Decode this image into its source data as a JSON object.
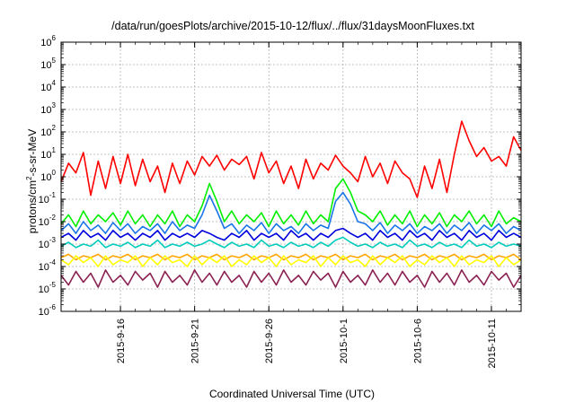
{
  "chart_data": {
    "type": "line",
    "title": "/data/run/goesPlots/archive/2015-10-12/flux/../flux/31daysMoonFluxes.txt",
    "xlabel": "Coordinated Universal Time (UTC)",
    "ylabel": {
      "pre": "protons/cm",
      "sup": "2",
      "post": "-s-sr-MeV"
    },
    "yscale": "log",
    "ylim": [
      1e-06,
      1000000.0
    ],
    "xlim": [
      12.0,
      43.0
    ],
    "x_unit": "days since 2015-09-01 (axis shown as dates)",
    "grid": true,
    "y_ticks": [
      {
        "value": 1e-06,
        "base": "10",
        "exp": "-6"
      },
      {
        "value": 1e-05,
        "base": "10",
        "exp": "-5"
      },
      {
        "value": 0.0001,
        "base": "10",
        "exp": "-4"
      },
      {
        "value": 0.001,
        "base": "10",
        "exp": "-3"
      },
      {
        "value": 0.01,
        "base": "10",
        "exp": "-2"
      },
      {
        "value": 0.1,
        "base": "10",
        "exp": "-1"
      },
      {
        "value": 1,
        "base": "10",
        "exp": "0"
      },
      {
        "value": 10.0,
        "base": "10",
        "exp": "1"
      },
      {
        "value": 100.0,
        "base": "10",
        "exp": "2"
      },
      {
        "value": 1000.0,
        "base": "10",
        "exp": "3"
      },
      {
        "value": 10000.0,
        "base": "10",
        "exp": "4"
      },
      {
        "value": 100000.0,
        "base": "10",
        "exp": "5"
      },
      {
        "value": 1000000.0,
        "base": "10",
        "exp": "6"
      }
    ],
    "x_ticks": [
      {
        "day": 16,
        "label": "2015-9-16"
      },
      {
        "day": 21,
        "label": "2015-9-21"
      },
      {
        "day": 26,
        "label": "2015-9-26"
      },
      {
        "day": 31,
        "label": "2015-10-1"
      },
      {
        "day": 36,
        "label": "2015-10-6"
      },
      {
        "day": 41,
        "label": "2015-10-11"
      }
    ],
    "series": [
      {
        "color": "#ff0000",
        "x": [
          12.0,
          12.5,
          13.0,
          13.5,
          14.0,
          14.5,
          15.0,
          15.5,
          16.0,
          16.5,
          17.0,
          17.5,
          18.0,
          18.5,
          19.0,
          19.5,
          20.0,
          20.5,
          21.0,
          21.5,
          22.0,
          22.5,
          23.0,
          23.5,
          24.0,
          24.5,
          25.0,
          25.5,
          26.0,
          26.5,
          27.0,
          27.5,
          28.0,
          28.5,
          29.0,
          29.5,
          30.0,
          30.5,
          31.0,
          31.5,
          32.0,
          32.5,
          33.0,
          33.5,
          34.0,
          34.5,
          35.0,
          35.5,
          36.0,
          36.5,
          37.0,
          37.5,
          38.0,
          38.5,
          39.0,
          39.5,
          40.0,
          40.5,
          41.0,
          41.5,
          42.0,
          42.5,
          43.0
        ],
        "y": [
          0.6,
          4.0,
          1.5,
          12.0,
          0.15,
          5.0,
          0.3,
          8.0,
          0.5,
          10.0,
          0.4,
          6.0,
          0.6,
          3.0,
          0.2,
          4.0,
          0.5,
          5.0,
          1.2,
          8.0,
          3.0,
          9.0,
          2.0,
          6.0,
          3.5,
          8.0,
          0.8,
          12.0,
          1.5,
          5.0,
          0.5,
          3.0,
          0.3,
          6.0,
          0.8,
          4.0,
          2.0,
          9.0,
          3.0,
          1.5,
          0.6,
          8.0,
          1.0,
          4.0,
          0.5,
          5.0,
          1.5,
          0.8,
          0.12,
          3.0,
          0.3,
          6.0,
          0.2,
          10.0,
          300.0,
          40.0,
          8.0,
          20.0,
          5.0,
          8.0,
          3.0,
          60.0,
          15.0
        ]
      },
      {
        "color": "#00ee00",
        "x": [
          12.0,
          12.5,
          13.0,
          13.5,
          14.0,
          14.5,
          15.0,
          15.5,
          16.0,
          16.5,
          17.0,
          17.5,
          18.0,
          18.5,
          19.0,
          19.5,
          20.0,
          20.5,
          21.0,
          21.5,
          22.0,
          22.5,
          23.0,
          23.5,
          24.0,
          24.5,
          25.0,
          25.5,
          26.0,
          26.5,
          27.0,
          27.5,
          28.0,
          28.5,
          29.0,
          29.5,
          30.0,
          30.5,
          31.0,
          31.5,
          32.0,
          32.5,
          33.0,
          33.5,
          34.0,
          34.5,
          35.0,
          35.5,
          36.0,
          36.5,
          37.0,
          37.5,
          38.0,
          38.5,
          39.0,
          39.5,
          40.0,
          40.5,
          41.0,
          41.5,
          42.0,
          42.5,
          43.0
        ],
        "y": [
          0.008,
          0.02,
          0.006,
          0.03,
          0.008,
          0.02,
          0.01,
          0.025,
          0.007,
          0.03,
          0.008,
          0.02,
          0.006,
          0.02,
          0.008,
          0.03,
          0.006,
          0.02,
          0.01,
          0.05,
          0.5,
          0.08,
          0.01,
          0.03,
          0.008,
          0.02,
          0.01,
          0.025,
          0.006,
          0.03,
          0.008,
          0.02,
          0.007,
          0.03,
          0.008,
          0.02,
          0.01,
          0.3,
          0.8,
          0.2,
          0.03,
          0.02,
          0.01,
          0.03,
          0.007,
          0.02,
          0.008,
          0.03,
          0.006,
          0.02,
          0.008,
          0.025,
          0.006,
          0.02,
          0.01,
          0.03,
          0.008,
          0.02,
          0.006,
          0.03,
          0.008,
          0.015,
          0.01
        ]
      },
      {
        "color": "#1874e8",
        "x": [
          12.0,
          12.5,
          13.0,
          13.5,
          14.0,
          14.5,
          15.0,
          15.5,
          16.0,
          16.5,
          17.0,
          17.5,
          18.0,
          18.5,
          19.0,
          19.5,
          20.0,
          20.5,
          21.0,
          21.5,
          22.0,
          22.5,
          23.0,
          23.5,
          24.0,
          24.5,
          25.0,
          25.5,
          26.0,
          26.5,
          27.0,
          27.5,
          28.0,
          28.5,
          29.0,
          29.5,
          30.0,
          30.5,
          31.0,
          31.5,
          32.0,
          32.5,
          33.0,
          33.5,
          34.0,
          34.5,
          35.0,
          35.5,
          36.0,
          36.5,
          37.0,
          37.5,
          38.0,
          38.5,
          39.0,
          39.5,
          40.0,
          40.5,
          41.0,
          41.5,
          42.0,
          42.5,
          43.0
        ],
        "y": [
          0.004,
          0.008,
          0.003,
          0.01,
          0.004,
          0.007,
          0.003,
          0.009,
          0.004,
          0.008,
          0.003,
          0.006,
          0.004,
          0.008,
          0.003,
          0.01,
          0.004,
          0.007,
          0.005,
          0.02,
          0.15,
          0.03,
          0.005,
          0.008,
          0.003,
          0.007,
          0.004,
          0.009,
          0.003,
          0.008,
          0.004,
          0.006,
          0.003,
          0.008,
          0.004,
          0.007,
          0.005,
          0.08,
          0.2,
          0.06,
          0.01,
          0.008,
          0.004,
          0.009,
          0.003,
          0.007,
          0.004,
          0.008,
          0.003,
          0.006,
          0.004,
          0.008,
          0.003,
          0.007,
          0.004,
          0.009,
          0.003,
          0.007,
          0.004,
          0.008,
          0.003,
          0.006,
          0.004
        ]
      },
      {
        "color": "#0000dd",
        "x": [
          12.0,
          12.5,
          13.0,
          13.5,
          14.0,
          14.5,
          15.0,
          15.5,
          16.0,
          16.5,
          17.0,
          17.5,
          18.0,
          18.5,
          19.0,
          19.5,
          20.0,
          20.5,
          21.0,
          21.5,
          22.0,
          22.5,
          23.0,
          23.5,
          24.0,
          24.5,
          25.0,
          25.5,
          26.0,
          26.5,
          27.0,
          27.5,
          28.0,
          28.5,
          29.0,
          29.5,
          30.0,
          30.5,
          31.0,
          31.5,
          32.0,
          32.5,
          33.0,
          33.5,
          34.0,
          34.5,
          35.0,
          35.5,
          36.0,
          36.5,
          37.0,
          37.5,
          38.0,
          38.5,
          39.0,
          39.5,
          40.0,
          40.5,
          41.0,
          41.5,
          42.0,
          42.5,
          43.0
        ],
        "y": [
          0.002,
          0.003,
          0.0015,
          0.004,
          0.002,
          0.003,
          0.0015,
          0.004,
          0.002,
          0.003,
          0.0015,
          0.003,
          0.002,
          0.004,
          0.0015,
          0.003,
          0.002,
          0.003,
          0.002,
          0.004,
          0.003,
          0.002,
          0.0015,
          0.003,
          0.002,
          0.004,
          0.0015,
          0.003,
          0.002,
          0.003,
          0.0015,
          0.004,
          0.002,
          0.003,
          0.0015,
          0.003,
          0.002,
          0.004,
          0.005,
          0.003,
          0.002,
          0.003,
          0.0015,
          0.004,
          0.002,
          0.003,
          0.0015,
          0.004,
          0.002,
          0.003,
          0.0015,
          0.004,
          0.002,
          0.003,
          0.0015,
          0.004,
          0.002,
          0.003,
          0.0015,
          0.004,
          0.002,
          0.003,
          0.002
        ]
      },
      {
        "color": "#00ccbb",
        "x": [
          12.0,
          12.5,
          13.0,
          13.5,
          14.0,
          14.5,
          15.0,
          15.5,
          16.0,
          16.5,
          17.0,
          17.5,
          18.0,
          18.5,
          19.0,
          19.5,
          20.0,
          20.5,
          21.0,
          21.5,
          22.0,
          22.5,
          23.0,
          23.5,
          24.0,
          24.5,
          25.0,
          25.5,
          26.0,
          26.5,
          27.0,
          27.5,
          28.0,
          28.5,
          29.0,
          29.5,
          30.0,
          30.5,
          31.0,
          31.5,
          32.0,
          32.5,
          33.0,
          33.5,
          34.0,
          34.5,
          35.0,
          35.5,
          36.0,
          36.5,
          37.0,
          37.5,
          38.0,
          38.5,
          39.0,
          39.5,
          40.0,
          40.5,
          41.0,
          41.5,
          42.0,
          42.5,
          43.0
        ],
        "y": [
          0.0008,
          0.0012,
          0.0007,
          0.001,
          0.0008,
          0.0015,
          0.0007,
          0.001,
          0.0008,
          0.0012,
          0.0007,
          0.001,
          0.0008,
          0.0015,
          0.0007,
          0.001,
          0.0008,
          0.0012,
          0.0008,
          0.001,
          0.0015,
          0.001,
          0.0007,
          0.0012,
          0.0008,
          0.001,
          0.0007,
          0.0015,
          0.0008,
          0.001,
          0.0007,
          0.0012,
          0.0008,
          0.001,
          0.0007,
          0.0012,
          0.0008,
          0.0015,
          0.002,
          0.0012,
          0.0008,
          0.001,
          0.0007,
          0.0012,
          0.0008,
          0.001,
          0.0007,
          0.0015,
          0.0008,
          0.001,
          0.0007,
          0.0012,
          0.0008,
          0.001,
          0.0007,
          0.0015,
          0.0008,
          0.001,
          0.0007,
          0.0012,
          0.0008,
          0.001,
          0.0008
        ]
      },
      {
        "color": "#ffa500",
        "x": [
          12.0,
          12.5,
          13.0,
          13.5,
          14.0,
          14.5,
          15.0,
          15.5,
          16.0,
          16.5,
          17.0,
          17.5,
          18.0,
          18.5,
          19.0,
          19.5,
          20.0,
          20.5,
          21.0,
          21.5,
          22.0,
          22.5,
          23.0,
          23.5,
          24.0,
          24.5,
          25.0,
          25.5,
          26.0,
          26.5,
          27.0,
          27.5,
          28.0,
          28.5,
          29.0,
          29.5,
          30.0,
          30.5,
          31.0,
          31.5,
          32.0,
          32.5,
          33.0,
          33.5,
          34.0,
          34.5,
          35.0,
          35.5,
          36.0,
          36.5,
          37.0,
          37.5,
          38.0,
          38.5,
          39.0,
          39.5,
          40.0,
          40.5,
          41.0,
          41.5,
          42.0,
          42.5,
          43.0
        ],
        "y": [
          0.00025,
          0.00035,
          0.0002,
          0.0003,
          0.00025,
          0.00035,
          0.0002,
          0.0003,
          0.00025,
          0.00035,
          0.0002,
          0.0003,
          0.00025,
          0.00035,
          0.0002,
          0.0003,
          0.00025,
          0.00035,
          0.0002,
          0.0003,
          0.00025,
          0.00035,
          0.0002,
          0.0003,
          0.00025,
          0.00035,
          0.0002,
          0.0003,
          0.00025,
          0.00035,
          0.0002,
          0.0003,
          0.00025,
          0.00035,
          0.0002,
          0.0003,
          0.00025,
          0.00035,
          0.0002,
          0.0003,
          0.00025,
          0.00035,
          0.0002,
          0.0003,
          0.00025,
          0.00035,
          0.0002,
          0.0003,
          0.00025,
          0.00035,
          0.0002,
          0.0003,
          0.00025,
          0.00035,
          0.0002,
          0.0003,
          0.00025,
          0.00035,
          0.0002,
          0.0003,
          0.00025,
          0.00035,
          0.0002
        ]
      },
      {
        "color": "#ffff00",
        "x": [
          12.0,
          12.5,
          13.0,
          13.5,
          14.0,
          14.5,
          15.0,
          15.5,
          16.0,
          16.5,
          17.0,
          17.5,
          18.0,
          18.5,
          19.0,
          19.5,
          20.0,
          20.5,
          21.0,
          21.5,
          22.0,
          22.5,
          23.0,
          23.5,
          24.0,
          24.5,
          25.0,
          25.5,
          26.0,
          26.5,
          27.0,
          27.5,
          28.0,
          28.5,
          29.0,
          29.5,
          30.0,
          30.5,
          31.0,
          31.5,
          32.0,
          32.5,
          33.0,
          33.5,
          34.0,
          34.5,
          35.0,
          35.5,
          36.0,
          36.5,
          37.0,
          37.5,
          38.0,
          38.5,
          39.0,
          39.5,
          40.0,
          40.5,
          41.0,
          41.5,
          42.0,
          42.5,
          43.0
        ],
        "y": [
          0.0002,
          0.00012,
          0.0003,
          0.00015,
          0.00025,
          0.0001,
          0.0003,
          0.00012,
          0.0002,
          0.00015,
          0.0003,
          0.0001,
          0.00025,
          0.00012,
          0.0003,
          0.00015,
          0.0002,
          0.0001,
          0.0003,
          0.00012,
          0.00025,
          0.00015,
          0.0003,
          0.0001,
          0.0002,
          0.00012,
          0.0003,
          0.00015,
          0.00025,
          0.0001,
          0.0003,
          0.00012,
          0.0002,
          0.00015,
          0.0003,
          0.0001,
          0.00025,
          0.00012,
          0.0003,
          0.00015,
          0.0002,
          0.0001,
          0.0003,
          0.00012,
          0.00025,
          0.00015,
          0.0003,
          0.0001,
          0.0002,
          0.00012,
          0.0003,
          0.00015,
          0.00025,
          0.0001,
          0.0003,
          0.00012,
          0.0002,
          0.00015,
          0.0003,
          0.0001,
          0.00025,
          0.00012,
          0.0002
        ]
      },
      {
        "color": "#8b2252",
        "x": [
          12.0,
          12.5,
          13.0,
          13.5,
          14.0,
          14.5,
          15.0,
          15.5,
          16.0,
          16.5,
          17.0,
          17.5,
          18.0,
          18.5,
          19.0,
          19.5,
          20.0,
          20.5,
          21.0,
          21.5,
          22.0,
          22.5,
          23.0,
          23.5,
          24.0,
          24.5,
          25.0,
          25.5,
          26.0,
          26.5,
          27.0,
          27.5,
          28.0,
          28.5,
          29.0,
          29.5,
          30.0,
          30.5,
          31.0,
          31.5,
          32.0,
          32.5,
          33.0,
          33.5,
          34.0,
          34.5,
          35.0,
          35.5,
          36.0,
          36.5,
          37.0,
          37.5,
          38.0,
          38.5,
          39.0,
          39.5,
          40.0,
          40.5,
          41.0,
          41.5,
          42.0,
          42.5,
          43.0
        ],
        "y": [
          4e-05,
          1.5e-05,
          6e-05,
          2e-05,
          5e-05,
          1.2e-05,
          7e-05,
          2e-05,
          4e-05,
          1.5e-05,
          6e-05,
          2.5e-05,
          5e-05,
          1.2e-05,
          6e-05,
          2e-05,
          4e-05,
          1.5e-05,
          7e-05,
          2e-05,
          5e-05,
          1.5e-05,
          6e-05,
          2e-05,
          4e-05,
          1.2e-05,
          6e-05,
          2e-05,
          5e-05,
          1.5e-05,
          7e-05,
          2e-05,
          4e-05,
          1.5e-05,
          6e-05,
          2.5e-05,
          5e-05,
          1.2e-05,
          6e-05,
          2e-05,
          4e-05,
          1.5e-05,
          7e-05,
          2e-05,
          5e-05,
          1.5e-05,
          6e-05,
          2e-05,
          4e-05,
          1.2e-05,
          6e-05,
          2e-05,
          5e-05,
          1.5e-05,
          7e-05,
          2e-05,
          4e-05,
          1.5e-05,
          6e-05,
          2.5e-05,
          5e-05,
          1.2e-05,
          4e-05
        ]
      }
    ]
  }
}
